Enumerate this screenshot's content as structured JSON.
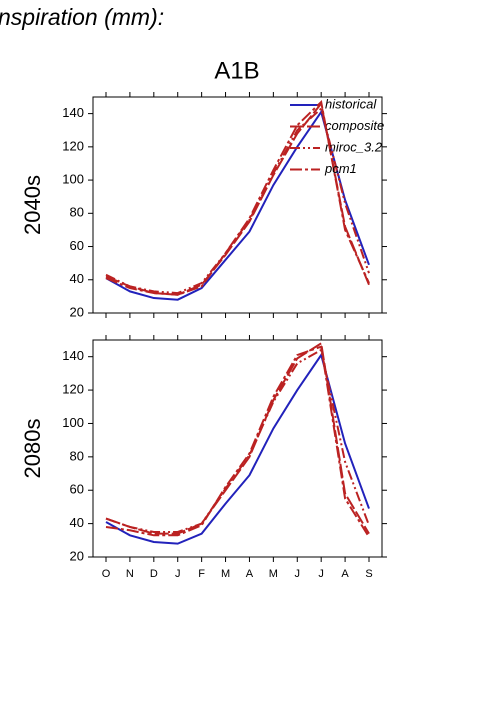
{
  "page_title": "nspiration (mm):",
  "panel_title": "A1B",
  "chart_data": [
    {
      "type": "line",
      "ylabel": "2040s",
      "categories": [
        null,
        null,
        null,
        null,
        null,
        null,
        null,
        null,
        null,
        null,
        null,
        null
      ],
      "ylim": [
        20,
        150
      ],
      "yticks": [
        20,
        40,
        60,
        80,
        100,
        120,
        140
      ],
      "legend": "upper right",
      "series": [
        {
          "name": "historical",
          "color": "#2222bb",
          "dash": "solid",
          "values": [
            41,
            33,
            29,
            28,
            35,
            52,
            69,
            97,
            120,
            141,
            88,
            49
          ]
        },
        {
          "name": "composite",
          "color": "#bb2222",
          "dash": "long",
          "values": [
            42,
            36,
            32,
            31,
            37,
            55,
            75,
            103,
            128,
            146,
            72,
            37
          ]
        },
        {
          "name": "miroc_3.2",
          "color": "#bb2222",
          "dash": "dashdotdot",
          "values": [
            43,
            36,
            33,
            32,
            38,
            56,
            76,
            104,
            130,
            143,
            86,
            44
          ]
        },
        {
          "name": "pcm1",
          "color": "#bb2222",
          "dash": "dashdot",
          "values": [
            41,
            35,
            32,
            31,
            36,
            56,
            77,
            106,
            133,
            147,
            70,
            38
          ]
        }
      ]
    },
    {
      "type": "line",
      "ylabel": "2080s",
      "categories": [
        "O",
        "N",
        "D",
        "J",
        "F",
        "M",
        "A",
        "M",
        "J",
        "J",
        "A",
        "S"
      ],
      "ylim": [
        20,
        150
      ],
      "yticks": [
        20,
        40,
        60,
        80,
        100,
        120,
        140
      ],
      "series": [
        {
          "color": "#2222bb",
          "dash": "solid",
          "values": [
            41,
            33,
            29,
            28,
            34,
            52,
            69,
            97,
            120,
            141,
            88,
            49
          ]
        },
        {
          "color": "#bb2222",
          "dash": "long",
          "values": [
            43,
            38,
            34,
            34,
            40,
            60,
            80,
            114,
            139,
            148,
            58,
            34
          ]
        },
        {
          "color": "#bb2222",
          "dash": "dashdotdot",
          "values": [
            43,
            38,
            35,
            35,
            40,
            61,
            81,
            113,
            136,
            144,
            77,
            39
          ]
        },
        {
          "color": "#bb2222",
          "dash": "dashdot",
          "values": [
            38,
            36,
            33,
            33,
            39,
            62,
            82,
            116,
            141,
            146,
            55,
            32
          ]
        }
      ]
    }
  ]
}
